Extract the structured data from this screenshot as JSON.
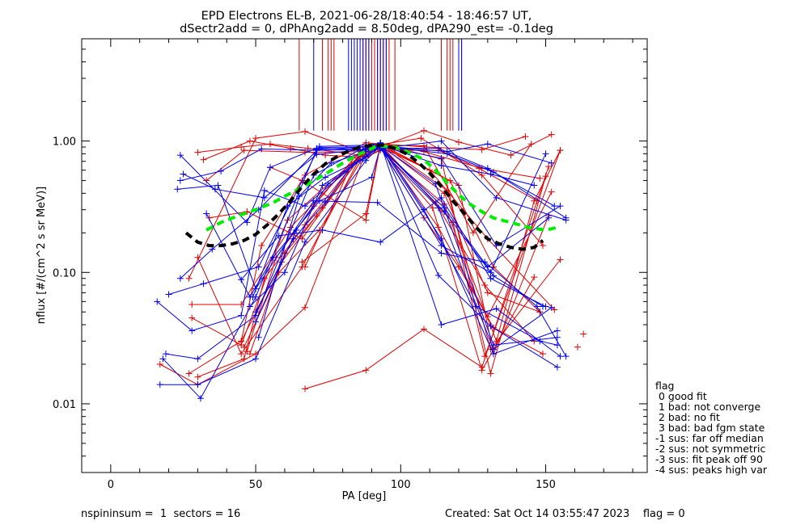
{
  "title_lines": [
    "EPD Electrons EL-B, 2021-06-28/18:40:54 - 18:46:57 UT,",
    "dSectr2add = 0, dPhAng2add = 8.50deg, dPA290_est=  -0.1deg"
  ],
  "footer": {
    "left": "nspininsum =  1  sectors = 16",
    "right": "Created: Sat Oct 14 03:55:47 2023    flag = 0"
  },
  "legend": {
    "title": "flag",
    "items": [
      " 0 good fit",
      " 1 bad: not converge",
      " 2 bad: no fit",
      " 3 bad: bad fgm state",
      "-1 sus: far off median",
      "-2 sus: not symmetric",
      "-3 sus: fit peak off 90",
      "-4 sus: peaks high var"
    ]
  },
  "colors": {
    "red": "#e00000",
    "blue": "#0000ee",
    "fit": "#000000",
    "median": "#00ee00",
    "axis": "#000000"
  },
  "chart_data": {
    "type": "line",
    "xlabel": "PA [deg]",
    "ylabel": "nflux [#/(cm^2 s sr MeV)]",
    "xlim": [
      -10,
      185
    ],
    "ylim": [
      0.003,
      6
    ],
    "ylog": true,
    "xticks": [
      0,
      50,
      100,
      150
    ],
    "xtick_labels": [
      "0",
      "50",
      "100",
      "150"
    ],
    "yticks": [
      0.01,
      0.1,
      1.0
    ],
    "ytick_labels": [
      "0.01",
      "0.10",
      "1.00"
    ],
    "sector_lines": {
      "ybottom": 1.2,
      "red_x": [
        65,
        73,
        75,
        76,
        77,
        87,
        88,
        89,
        90,
        91,
        92,
        93,
        94,
        95,
        96,
        98,
        114,
        116,
        117,
        118,
        121
      ],
      "blue_x": [
        70,
        82,
        83,
        84,
        85,
        86,
        87,
        88,
        89,
        92,
        93,
        94,
        95,
        120,
        121
      ]
    },
    "series": [
      {
        "color": "red",
        "x": [
          17,
          30,
          50,
          67,
          88,
          93,
          108,
          120,
          132,
          149
        ],
        "y": [
          0.02,
          0.014,
          0.024,
          0.054,
          0.83,
          0.9,
          0.26,
          0.11,
          0.038,
          0.024
        ]
      },
      {
        "color": "red",
        "x": [
          27,
          45,
          52,
          67,
          88,
          93,
          108,
          128,
          148
        ],
        "y": [
          0.017,
          0.03,
          0.16,
          0.55,
          0.97,
          0.95,
          0.83,
          0.62,
          0.52
        ]
      },
      {
        "color": "red",
        "x": [
          30,
          46,
          53,
          67,
          89,
          93,
          110,
          130,
          153
        ],
        "y": [
          0.016,
          0.022,
          0.09,
          0.23,
          0.94,
          0.9,
          0.6,
          0.18,
          0.052
        ]
      },
      {
        "color": "red",
        "x": [
          30,
          45,
          55,
          68,
          86,
          93,
          107,
          128,
          149
        ],
        "y": [
          0.82,
          0.9,
          0.95,
          0.88,
          0.78,
          0.94,
          1.05,
          0.55,
          0.16
        ]
      },
      {
        "color": "red",
        "x": [
          32,
          48,
          62,
          74,
          88,
          93,
          113,
          127,
          147
        ],
        "y": [
          0.72,
          1.0,
          0.88,
          0.78,
          0.75,
          0.85,
          0.85,
          0.62,
          0.35
        ]
      },
      {
        "color": "red",
        "x": [
          27,
          50,
          67,
          87,
          93,
          108,
          120,
          138,
          152
        ],
        "y": [
          0.09,
          1.05,
          1.18,
          0.82,
          0.9,
          1.2,
          0.98,
          0.78,
          1.12
        ]
      },
      {
        "color": "red",
        "x": [
          33,
          46,
          67,
          87,
          93,
          109,
          128,
          143
        ],
        "y": [
          0.5,
          0.85,
          0.82,
          0.83,
          0.95,
          0.9,
          0.86,
          1.08
        ]
      },
      {
        "color": "red",
        "x": [
          34,
          47,
          66,
          88,
          93,
          115,
          130,
          148
        ],
        "y": [
          0.26,
          0.29,
          0.18,
          0.88,
          0.93,
          0.4,
          0.07,
          0.05
        ]
      },
      {
        "color": "red",
        "x": [
          30,
          45,
          66,
          88,
          93,
          117,
          132,
          148
        ],
        "y": [
          0.13,
          0.024,
          0.11,
          0.9,
          0.95,
          0.5,
          0.11,
          0.05
        ]
      },
      {
        "color": "red",
        "x": [
          28,
          45,
          62,
          86,
          93,
          112,
          129,
          146
        ],
        "y": [
          0.057,
          0.057,
          0.22,
          0.78,
          0.9,
          0.34,
          0.08,
          0.03
        ]
      },
      {
        "color": "red",
        "x": [
          28,
          45,
          61,
          85,
          93,
          111,
          128,
          146
        ],
        "y": [
          0.045,
          0.028,
          0.25,
          0.74,
          0.89,
          0.31,
          0.018,
          0.092
        ]
      },
      {
        "color": "red",
        "x": [
          45,
          59,
          73,
          88,
          93,
          114,
          131,
          150
        ],
        "y": [
          0.03,
          0.12,
          0.31,
          0.86,
          0.95,
          0.73,
          0.017,
          0.54
        ]
      },
      {
        "color": "red",
        "x": [
          46,
          58,
          72,
          88,
          93,
          113,
          130,
          152
        ],
        "y": [
          0.027,
          0.1,
          0.21,
          0.82,
          0.93,
          0.22,
          0.046,
          0.41
        ]
      },
      {
        "color": "red",
        "x": [
          47,
          57,
          70,
          86,
          93,
          116,
          131,
          155
        ],
        "y": [
          0.025,
          0.13,
          0.32,
          0.84,
          0.96,
          0.42,
          0.026,
          0.125
        ]
      },
      {
        "color": "red",
        "x": [
          48,
          60,
          71,
          87,
          93,
          118,
          129,
          155
        ],
        "y": [
          0.024,
          0.14,
          0.27,
          0.8,
          0.94,
          0.24,
          0.023,
          0.85
        ]
      },
      {
        "color": "red",
        "x": [
          66,
          88,
          93,
          120,
          132,
          151
        ],
        "y": [
          0.12,
          0.28,
          0.93,
          0.46,
          0.024,
          0.27
        ]
      },
      {
        "color": "red",
        "x": [
          67,
          83,
          93,
          115,
          133,
          146,
          155
        ],
        "y": [
          0.11,
          0.66,
          0.86,
          0.33,
          0.03,
          0.35,
          0.85
        ]
      },
      {
        "color": "red",
        "x": [
          67,
          88,
          108,
          128,
          151
        ],
        "y": [
          0.013,
          0.018,
          0.037,
          0.019,
          0.64
        ]
      },
      {
        "color": "red",
        "x": [
          55,
          66,
          88,
          93,
          108,
          125,
          145
        ],
        "y": [
          0.63,
          0.5,
          0.25,
          0.93,
          0.92,
          0.2,
          0.95
        ]
      },
      {
        "color": "blue",
        "x": [
          16,
          28,
          45,
          53,
          67,
          93,
          108,
          126,
          148,
          154
        ],
        "y": [
          0.06,
          0.036,
          0.047,
          0.42,
          0.32,
          0.96,
          0.3,
          0.055,
          0.03,
          0.028
        ]
      },
      {
        "color": "blue",
        "x": [
          17,
          30,
          50,
          67,
          88,
          93,
          112,
          132,
          154
        ],
        "y": [
          0.014,
          0.014,
          0.022,
          0.17,
          0.71,
          0.92,
          0.47,
          0.028,
          0.032
        ]
      },
      {
        "color": "blue",
        "x": [
          19,
          30,
          50,
          70,
          86,
          93,
          114,
          132,
          154
        ],
        "y": [
          0.024,
          0.022,
          0.047,
          0.55,
          0.86,
          0.93,
          0.18,
          0.024,
          0.036
        ]
      },
      {
        "color": "blue",
        "x": [
          18,
          31,
          50,
          71,
          88,
          93,
          113,
          131,
          154
        ],
        "y": [
          0.022,
          0.011,
          0.065,
          0.86,
          0.9,
          0.97,
          0.095,
          0.039,
          0.019
        ]
      },
      {
        "color": "blue",
        "x": [
          20,
          32,
          51,
          72,
          88,
          93,
          114,
          133,
          155
        ],
        "y": [
          0.068,
          0.082,
          0.11,
          0.91,
          0.93,
          0.96,
          0.04,
          0.053,
          0.023
        ]
      },
      {
        "color": "blue",
        "x": [
          24,
          35,
          51,
          72,
          92,
          113,
          132,
          152
        ],
        "y": [
          0.09,
          0.15,
          0.3,
          0.89,
          0.91,
          0.31,
          0.026,
          0.054
        ]
      },
      {
        "color": "blue",
        "x": [
          23,
          37,
          50,
          70,
          92,
          114,
          129,
          147,
          157
        ],
        "y": [
          0.43,
          0.46,
          0.075,
          0.35,
          0.34,
          0.14,
          0.12,
          0.055,
          0.023
        ]
      },
      {
        "color": "blue",
        "x": [
          24,
          38,
          52,
          71,
          87,
          93,
          113,
          130,
          157
        ],
        "y": [
          0.5,
          0.59,
          0.87,
          0.85,
          0.86,
          0.88,
          0.88,
          0.62,
          0.26
        ]
      },
      {
        "color": "blue",
        "x": [
          25,
          36,
          53,
          71,
          93,
          114,
          131,
          150
        ],
        "y": [
          0.56,
          0.43,
          0.37,
          0.79,
          0.89,
          0.16,
          0.1,
          0.8
        ]
      },
      {
        "color": "blue",
        "x": [
          24,
          47,
          55,
          71,
          86,
          93,
          114,
          133,
          157
        ],
        "y": [
          0.78,
          0.24,
          0.63,
          0.88,
          0.86,
          0.88,
          1.0,
          0.37,
          0.25
        ]
      },
      {
        "color": "blue",
        "x": [
          33,
          48,
          56,
          72,
          90,
          93,
          115,
          130,
          151
        ],
        "y": [
          0.28,
          0.065,
          0.13,
          0.35,
          0.53,
          0.9,
          0.31,
          0.11,
          0.26
        ]
      },
      {
        "color": "blue",
        "x": [
          45,
          58,
          73,
          93,
          114,
          131,
          150
        ],
        "y": [
          0.088,
          0.19,
          0.21,
          0.17,
          0.37,
          0.09,
          0.055
        ]
      },
      {
        "color": "blue",
        "x": [
          48,
          60,
          73,
          86,
          93,
          114,
          133,
          155
        ],
        "y": [
          0.055,
          0.1,
          0.46,
          0.71,
          0.92,
          0.74,
          0.16,
          0.32
        ]
      },
      {
        "color": "blue",
        "x": [
          49,
          61,
          74,
          87,
          93,
          116,
          132,
          153
        ],
        "y": [
          0.065,
          0.32,
          0.53,
          0.73,
          0.91,
          0.8,
          0.58,
          0.32
        ]
      },
      {
        "color": "blue",
        "x": [
          50,
          63,
          74,
          87,
          93,
          114,
          131,
          146
        ],
        "y": [
          0.05,
          0.18,
          0.34,
          0.85,
          0.93,
          0.65,
          0.56,
          0.46
        ]
      },
      {
        "color": "blue",
        "x": [
          50,
          64,
          75,
          88,
          93,
          115,
          132,
          149
        ],
        "y": [
          0.042,
          0.21,
          0.47,
          0.76,
          0.91,
          0.29,
          0.094,
          0.055
        ]
      },
      {
        "color": "blue",
        "x": [
          51,
          65,
          76,
          88,
          93,
          116,
          130,
          152
        ],
        "y": [
          0.032,
          0.38,
          0.68,
          0.83,
          0.92,
          0.83,
          0.95,
          0.68
        ]
      }
    ],
    "fit_curve": {
      "style": "dashed",
      "x": [
        26,
        30,
        34,
        38,
        42,
        46,
        50,
        54,
        58,
        62,
        66,
        70,
        74,
        78,
        82,
        86,
        90,
        94,
        98,
        102,
        106,
        110,
        114,
        118,
        122,
        126,
        130,
        134,
        138,
        142,
        146,
        149
      ],
      "y": [
        0.2,
        0.17,
        0.16,
        0.16,
        0.165,
        0.175,
        0.195,
        0.23,
        0.28,
        0.35,
        0.45,
        0.56,
        0.67,
        0.76,
        0.84,
        0.9,
        0.93,
        0.93,
        0.88,
        0.8,
        0.69,
        0.57,
        0.45,
        0.35,
        0.28,
        0.22,
        0.18,
        0.165,
        0.155,
        0.15,
        0.155,
        0.175
      ]
    },
    "median_curve": {
      "style": "dashed",
      "x": [
        33,
        38,
        44,
        50,
        56,
        62,
        68,
        74,
        80,
        86,
        92,
        98,
        104,
        108,
        112,
        116,
        120,
        124,
        128,
        132,
        138,
        144,
        150,
        154
      ],
      "y": [
        0.21,
        0.24,
        0.27,
        0.3,
        0.34,
        0.4,
        0.47,
        0.56,
        0.68,
        0.8,
        0.92,
        0.9,
        0.8,
        0.72,
        0.6,
        0.48,
        0.39,
        0.33,
        0.29,
        0.26,
        0.24,
        0.22,
        0.21,
        0.22
      ]
    },
    "isolated_points": [
      {
        "color": "red",
        "x": 161,
        "y": 0.027
      },
      {
        "color": "red",
        "x": 163,
        "y": 0.034
      }
    ]
  }
}
